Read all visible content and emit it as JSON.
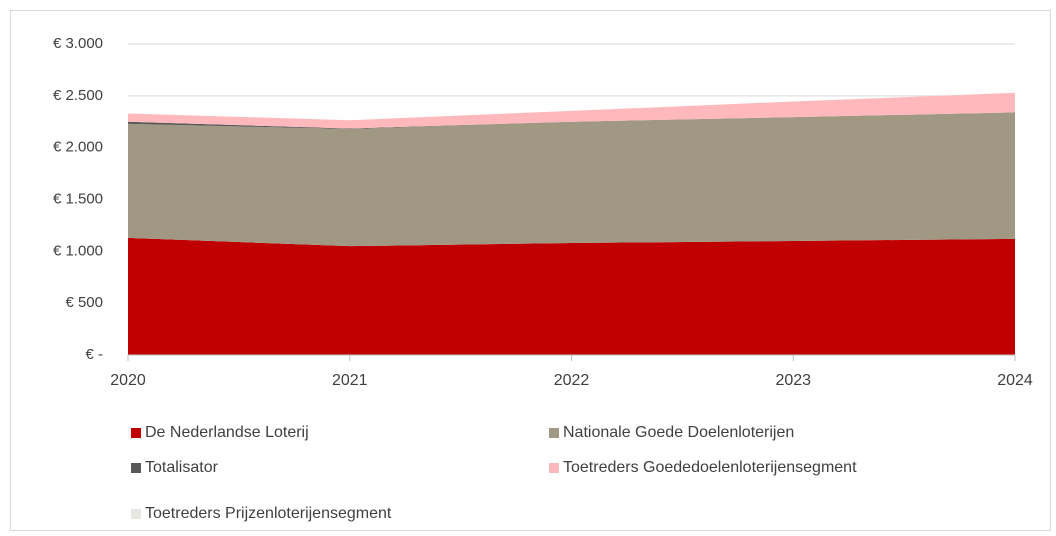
{
  "chart_data": {
    "type": "stacked_area",
    "categories": [
      "2020",
      "2021",
      "2022",
      "2023",
      "2024"
    ],
    "series": [
      {
        "name": "De Nederlandse Loterij",
        "color": "#c00000",
        "values": [
          1130,
          1050,
          1080,
          1100,
          1120
        ]
      },
      {
        "name": "Nationale Goede Doelenloterijen",
        "color": "#a09882",
        "values": [
          1100,
          1130,
          1170,
          1195,
          1220
        ]
      },
      {
        "name": "Totalisator",
        "color": "#595959",
        "values": [
          20,
          5,
          0,
          0,
          0
        ]
      },
      {
        "name": "Toetreders Goededoelenloterijensegment",
        "color": "#ffb9bd",
        "values": [
          80,
          80,
          105,
          150,
          190
        ]
      },
      {
        "name": "Toetreders Prijzenloterijensegment",
        "color": "#e8e8e2",
        "values": [
          0,
          0,
          0,
          0,
          0
        ]
      }
    ],
    "ylim": [
      0,
      3000
    ],
    "yticks": [
      {
        "value": 0,
        "label": "€ -"
      },
      {
        "value": 500,
        "label": "€ 500"
      },
      {
        "value": 1000,
        "label": "€ 1.000"
      },
      {
        "value": 1500,
        "label": "€ 1.500"
      },
      {
        "value": 2000,
        "label": "€ 2.000"
      },
      {
        "value": 2500,
        "label": "€ 2.500"
      },
      {
        "value": 3000,
        "label": "€ 3.000"
      }
    ],
    "grid": true
  }
}
